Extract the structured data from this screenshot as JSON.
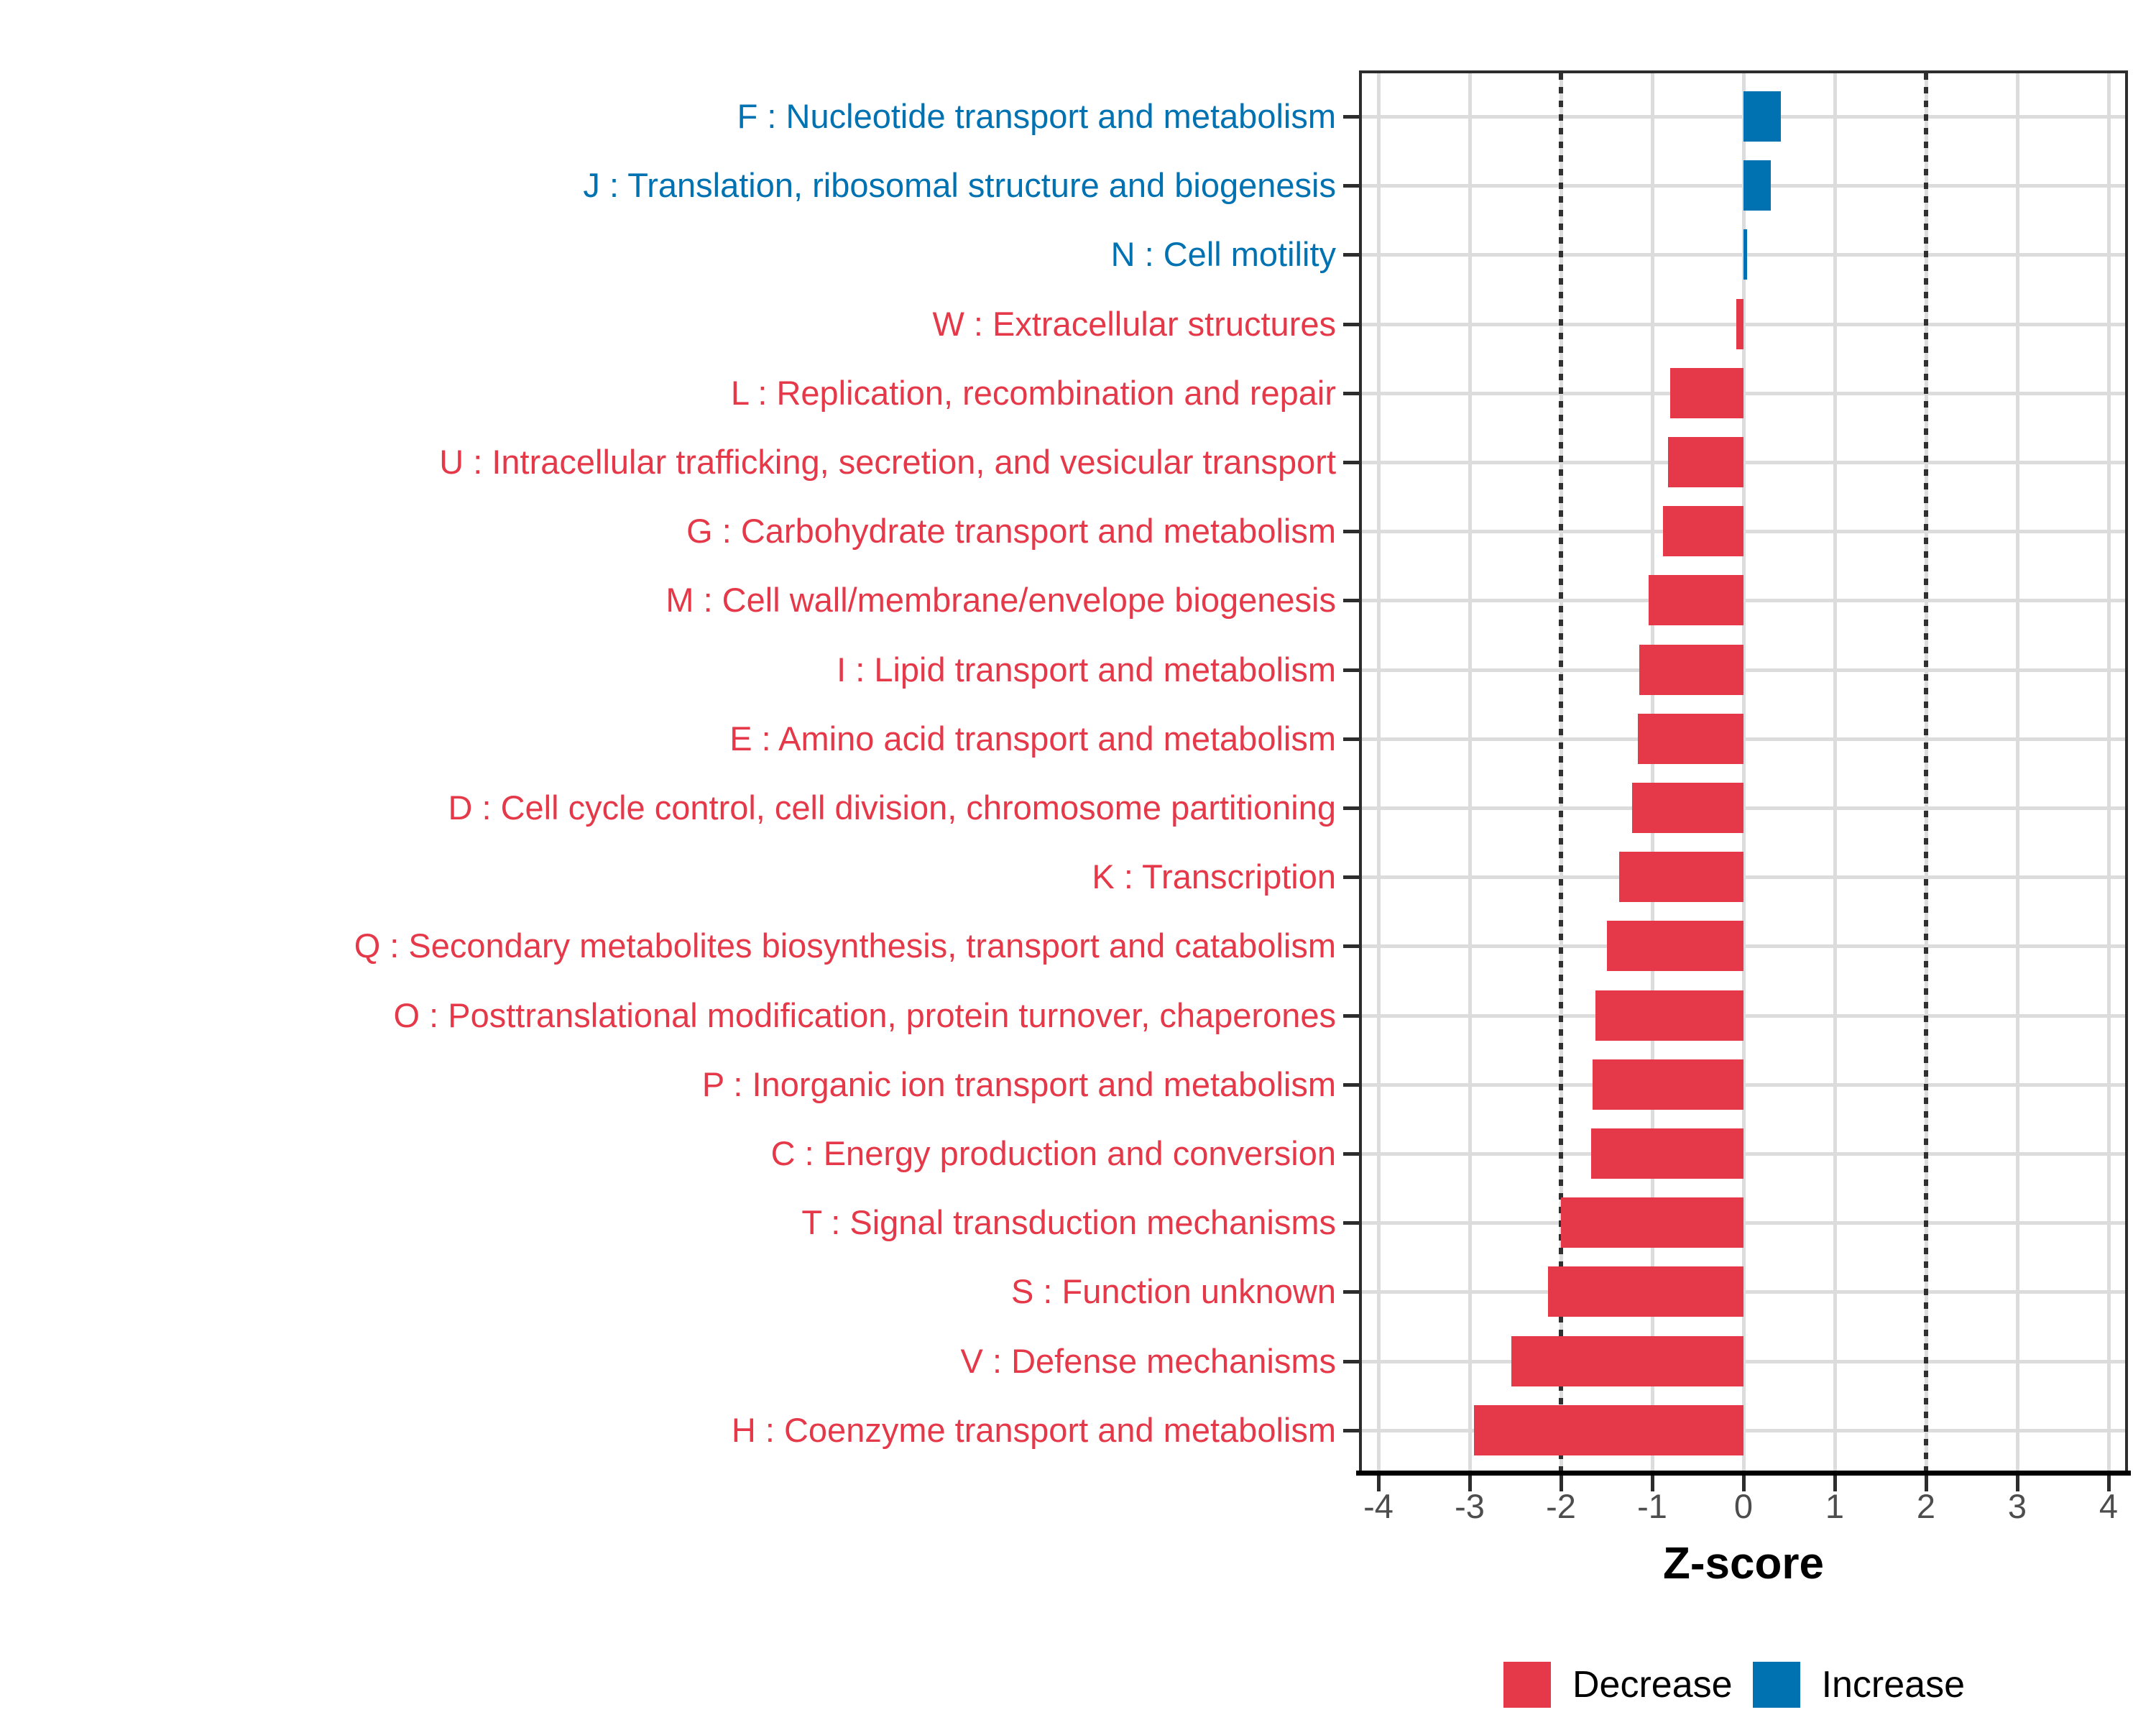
{
  "chart_data": {
    "type": "bar",
    "orientation": "horizontal",
    "title": "",
    "xlabel": "Z-score",
    "xlim": [
      -4.2,
      4.2
    ],
    "x_ticks": [
      -4,
      -3,
      -2,
      -1,
      0,
      1,
      2,
      3,
      4
    ],
    "x_tick_labels": [
      "-4",
      "-3",
      "-2",
      "-1",
      "0",
      "1",
      "2",
      "3",
      "4"
    ],
    "reference_lines_x": [
      -2,
      2
    ],
    "grid": true,
    "legend_position": "bottom-right",
    "categories": [
      {
        "label": "F : Nucleotide transport and metabolism",
        "value": 0.41,
        "group": "Increase"
      },
      {
        "label": "J : Translation, ribosomal structure and biogenesis",
        "value": 0.3,
        "group": "Increase"
      },
      {
        "label": "N : Cell motility",
        "value": 0.04,
        "group": "Increase"
      },
      {
        "label": "W : Extracellular structures",
        "value": -0.08,
        "group": "Decrease"
      },
      {
        "label": "L : Replication, recombination and repair",
        "value": -0.8,
        "group": "Decrease"
      },
      {
        "label": "U : Intracellular trafficking, secretion, and vesicular transport",
        "value": -0.83,
        "group": "Decrease"
      },
      {
        "label": "G : Carbohydrate transport and metabolism",
        "value": -0.88,
        "group": "Decrease"
      },
      {
        "label": "M : Cell wall/membrane/envelope biogenesis",
        "value": -1.04,
        "group": "Decrease"
      },
      {
        "label": "I : Lipid transport and metabolism",
        "value": -1.14,
        "group": "Decrease"
      },
      {
        "label": "E : Amino acid transport and metabolism",
        "value": -1.16,
        "group": "Decrease"
      },
      {
        "label": "D : Cell cycle control, cell division, chromosome partitioning",
        "value": -1.22,
        "group": "Decrease"
      },
      {
        "label": "K : Transcription",
        "value": -1.36,
        "group": "Decrease"
      },
      {
        "label": "Q : Secondary metabolites biosynthesis, transport and catabolism",
        "value": -1.5,
        "group": "Decrease"
      },
      {
        "label": "O : Posttranslational modification, protein turnover, chaperones",
        "value": -1.62,
        "group": "Decrease"
      },
      {
        "label": "P : Inorganic ion transport and metabolism",
        "value": -1.65,
        "group": "Decrease"
      },
      {
        "label": "C : Energy production and conversion",
        "value": -1.67,
        "group": "Decrease"
      },
      {
        "label": "T : Signal transduction mechanisms",
        "value": -2.0,
        "group": "Decrease"
      },
      {
        "label": "S : Function unknown",
        "value": -2.14,
        "group": "Decrease"
      },
      {
        "label": "V : Defense mechanisms",
        "value": -2.54,
        "group": "Decrease"
      },
      {
        "label": "H : Coenzyme transport and metabolism",
        "value": -2.95,
        "group": "Decrease"
      }
    ],
    "legend": [
      {
        "label": "Decrease",
        "group": "Decrease"
      },
      {
        "label": "Increase",
        "group": "Increase"
      }
    ]
  },
  "colors": {
    "Decrease": "#E5394A",
    "Increase": "#0072B2",
    "grid": "#DCDCDC",
    "axis_text": "#4D4D4D",
    "axis_line": "#000000",
    "panel_border": "#2D2D2D",
    "reference_line": "#303030"
  }
}
